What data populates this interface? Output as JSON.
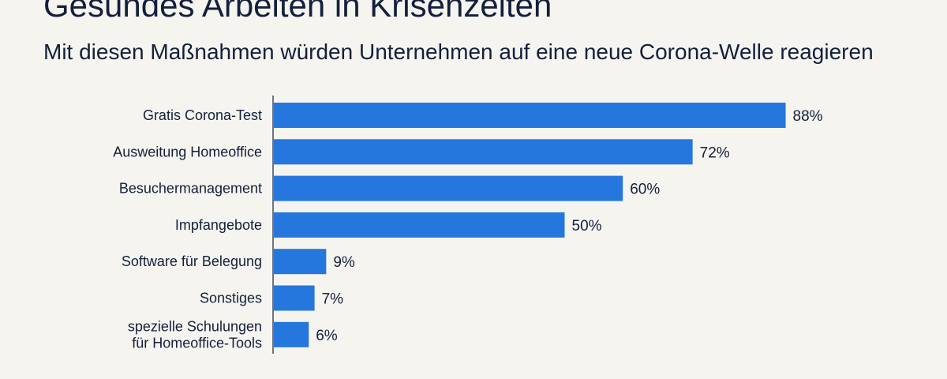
{
  "title": "Gesundes Arbeiten in Krisenzeiten",
  "subtitle": "Mit diesen Maßnahmen würden Unternehmen auf eine neue Corona-Welle reagieren",
  "chart_data": {
    "type": "bar",
    "orientation": "horizontal",
    "categories": [
      "Gratis Corona-Test",
      "Ausweitung Homeoffice",
      "Besuchermanagement",
      "Impfangebote",
      "Software für Belegung",
      "Sonstiges",
      "spezielle Schulungen\nfür Homeoffice-Tools"
    ],
    "values": [
      88,
      72,
      60,
      50,
      9,
      7,
      6
    ],
    "value_labels": [
      "88%",
      "72%",
      "60%",
      "50%",
      "9%",
      "7%",
      "6%"
    ],
    "unit": "%",
    "xlim": [
      0,
      100
    ],
    "grid": false,
    "legend": "none",
    "bar_color": "#2577dd"
  }
}
